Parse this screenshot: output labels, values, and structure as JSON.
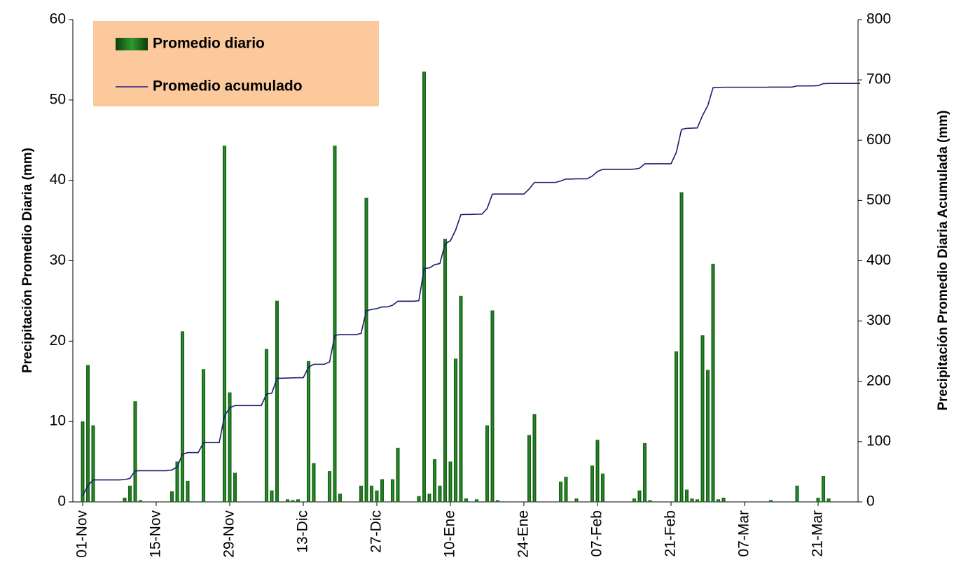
{
  "chart_data": {
    "type": "combo",
    "ylabel": "Precipitación Promedio Diaria (mm)",
    "y2label": "Precipitación Promedio Diaria Acumulada (mm)",
    "ylim": [
      0,
      60
    ],
    "yticks": [
      0,
      10,
      20,
      30,
      40,
      50,
      60
    ],
    "y2lim": [
      0,
      800
    ],
    "y2ticks": [
      0,
      100,
      200,
      300,
      400,
      500,
      600,
      700,
      800
    ],
    "legend": "upper left",
    "categories": [
      "01-Nov",
      null,
      null,
      null,
      null,
      null,
      null,
      null,
      null,
      null,
      null,
      null,
      null,
      null,
      "15-Nov",
      null,
      null,
      null,
      null,
      null,
      null,
      null,
      null,
      null,
      null,
      null,
      null,
      null,
      "29-Nov",
      null,
      null,
      null,
      null,
      null,
      null,
      null,
      null,
      null,
      null,
      null,
      null,
      null,
      "13-Dic",
      null,
      null,
      null,
      null,
      null,
      null,
      null,
      null,
      null,
      null,
      null,
      null,
      null,
      "27-Dic",
      null,
      null,
      null,
      null,
      null,
      null,
      null,
      null,
      null,
      null,
      null,
      null,
      null,
      "10-Ene",
      null,
      null,
      null,
      null,
      null,
      null,
      null,
      null,
      null,
      null,
      null,
      null,
      null,
      "24-Ene",
      null,
      null,
      null,
      null,
      null,
      null,
      null,
      null,
      null,
      null,
      null,
      null,
      null,
      "07-Feb",
      null,
      null,
      null,
      null,
      null,
      null,
      null,
      null,
      null,
      null,
      null,
      null,
      null,
      "21-Feb",
      null,
      null,
      null,
      null,
      null,
      null,
      null,
      null,
      null,
      null,
      null,
      null,
      null,
      "07-Mar",
      null,
      null,
      null,
      null,
      null,
      null,
      null,
      null,
      null,
      null,
      null,
      null,
      null,
      "21-Mar",
      null,
      null,
      null,
      null,
      null,
      null,
      null,
      null
    ],
    "series": [
      {
        "name": "Promedio diario",
        "type": "bar",
        "color": "#1b6b1b",
        "values": [
          10,
          17,
          9.5,
          0,
          0,
          0,
          0,
          0,
          0.5,
          2,
          12.5,
          0.2,
          0,
          0,
          0,
          0,
          0,
          1.3,
          5,
          21.2,
          2.6,
          0,
          0,
          16.5,
          0,
          0,
          0,
          44.3,
          13.6,
          3.6,
          0,
          0,
          0,
          0,
          0,
          19,
          1.4,
          25,
          0,
          0.3,
          0.2,
          0.3,
          0,
          17.5,
          4.8,
          0,
          0,
          3.8,
          44.3,
          1,
          0,
          0,
          0,
          2,
          37.8,
          2,
          1.4,
          2.8,
          0,
          2.8,
          6.7,
          0,
          0,
          0,
          0.7,
          53.5,
          1,
          5.3,
          2,
          32.7,
          5,
          17.8,
          25.6,
          0.4,
          0,
          0.3,
          0,
          9.5,
          23.8,
          0.2,
          0,
          0,
          0,
          0,
          0,
          8.3,
          10.9,
          0,
          0,
          0,
          0,
          2.5,
          3.1,
          0,
          0.4,
          0,
          0,
          4.5,
          7.7,
          3.5,
          0,
          0,
          0,
          0,
          0,
          0.4,
          1.4,
          7.3,
          0.2,
          0,
          0,
          0,
          0,
          18.7,
          38.5,
          1.5,
          0.4,
          0.3,
          20.7,
          16.4,
          29.6,
          0.3,
          0.5,
          0,
          0,
          0,
          0,
          0,
          0,
          0,
          0,
          0.2,
          0,
          0,
          0,
          0,
          2,
          0,
          0,
          0,
          0.5,
          3.2,
          0.4,
          0,
          0,
          0,
          0,
          0,
          0
        ]
      },
      {
        "name": "Promedio acumulado",
        "type": "line",
        "axis": "y2",
        "color": "#1c1c6e",
        "values": [
          10,
          27,
          36.5,
          36.5,
          36.5,
          36.5,
          36.5,
          36.5,
          37,
          39,
          51.5,
          51.7,
          51.7,
          51.7,
          51.7,
          51.7,
          51.7,
          53,
          58,
          79.2,
          81.8,
          81.8,
          81.8,
          98.3,
          98.3,
          98.3,
          98.3,
          142.6,
          156.2,
          159.8,
          159.8,
          159.8,
          159.8,
          159.8,
          159.8,
          178.8,
          180.2,
          205.2,
          205.2,
          205.5,
          205.7,
          206,
          206,
          223.5,
          228.3,
          228.3,
          228.3,
          232.1,
          276.4,
          277.4,
          277.4,
          277.4,
          277.4,
          279.4,
          317.2,
          319.2,
          320.6,
          323.4,
          323.4,
          326.2,
          332.9,
          332.9,
          332.9,
          332.9,
          333.6,
          387.1,
          388.1,
          393.4,
          395.4,
          428.1,
          433.1,
          450.9,
          476.5,
          476.9,
          476.9,
          477.2,
          477.2,
          486.7,
          510.5,
          510.7,
          510.7,
          510.7,
          510.7,
          510.7,
          510.7,
          519,
          529.9,
          529.9,
          529.9,
          529.9,
          529.9,
          532.4,
          535.5,
          535.5,
          535.9,
          535.9,
          535.9,
          540.4,
          548.1,
          551.6,
          551.6,
          551.6,
          551.6,
          551.6,
          551.6,
          552,
          553.4,
          560.7,
          560.9,
          560.9,
          560.9,
          560.9,
          560.9,
          579.6,
          618.1,
          619.6,
          620,
          620.3,
          641,
          657.4,
          687,
          687.3,
          687.8,
          687.8,
          687.8,
          687.8,
          687.8,
          687.8,
          687.8,
          687.8,
          687.8,
          688,
          688,
          688,
          688,
          688,
          690,
          690,
          690,
          690,
          690.5,
          693.7,
          694.1,
          694.1,
          694.1,
          694.1,
          694.1,
          694.1,
          694.1
        ]
      }
    ]
  }
}
